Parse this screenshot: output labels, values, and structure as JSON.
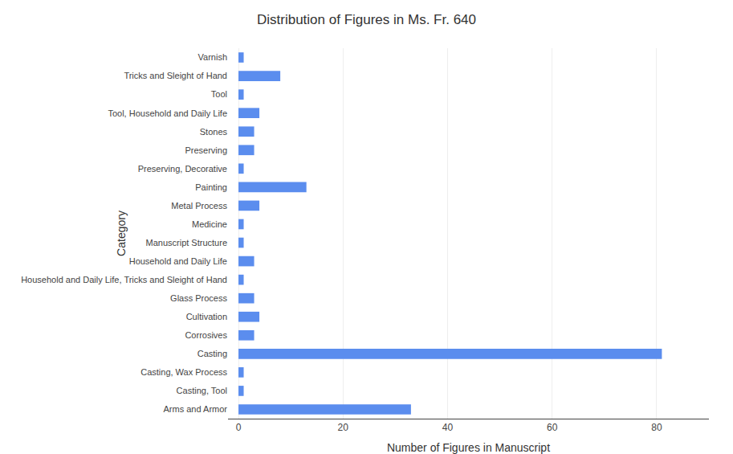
{
  "chart_data": {
    "type": "bar",
    "orientation": "horizontal",
    "title": "Distribution of Figures in Ms. Fr. 640",
    "xlabel": "Number of Figures in Manuscript",
    "ylabel": "Category",
    "categories": [
      "Varnish",
      "Tricks and Sleight of Hand",
      "Tool",
      "Tool, Household and Daily Life",
      "Stones",
      "Preserving",
      "Preserving, Decorative",
      "Painting",
      "Metal Process",
      "Medicine",
      "Manuscript Structure",
      "Household and Daily Life",
      "Household and Daily Life, Tricks and Sleight of Hand",
      "Glass Process",
      "Cultivation",
      "Corrosives",
      "Casting",
      "Casting, Wax Process",
      "Casting, Tool",
      "Arms and Armor"
    ],
    "values": [
      1,
      8,
      1,
      4,
      3,
      3,
      1,
      13,
      4,
      1,
      1,
      3,
      1,
      3,
      4,
      3,
      81,
      1,
      1,
      33
    ],
    "color": "#5b8dee",
    "xlim": [
      -2,
      90
    ],
    "xticks": [
      0,
      20,
      40,
      60,
      80
    ],
    "grid": true
  }
}
